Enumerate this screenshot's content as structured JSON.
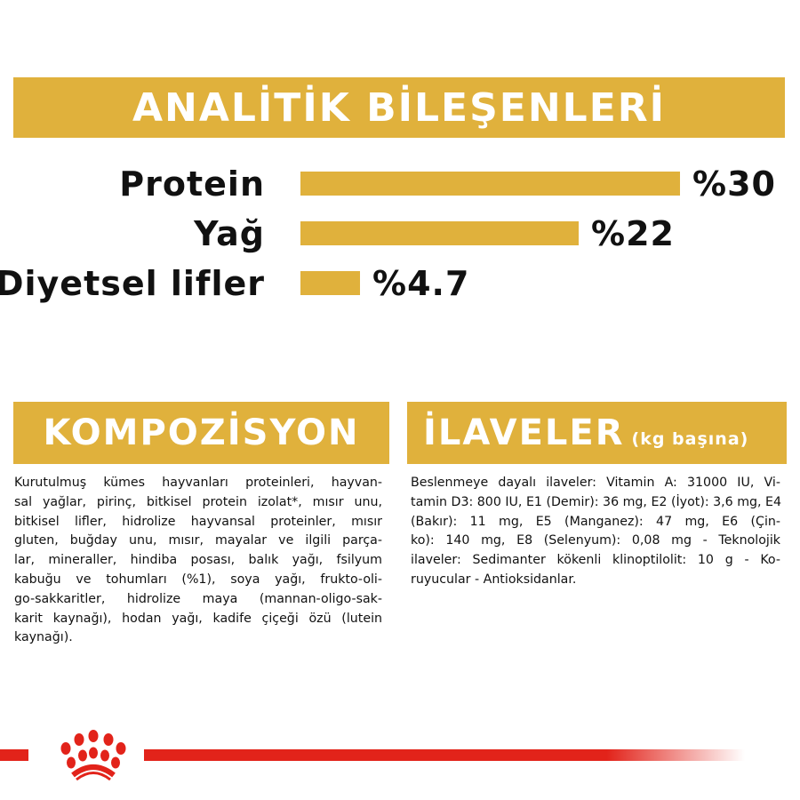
{
  "analytics": {
    "title": "ANALİTİK BİLEŞENLERİ",
    "color": "#e0b13c",
    "items": [
      {
        "label": "Protein",
        "value_text": "%30",
        "value": 30
      },
      {
        "label": "Yağ",
        "value_text": "%22",
        "value": 22
      },
      {
        "label": "Diyetsel lifler",
        "value_text": "%4.7",
        "value": 4.7
      }
    ]
  },
  "composition": {
    "title": "KOMPOZİSYON",
    "lines": [
      "Kurutulmuş kümes hayvanları proteinleri, hayvan-",
      "sal yağlar, pirinç, bitkisel protein izolat*, mısır unu,",
      "bitkisel lifler, hidrolize hayvansal proteinler, mısır",
      "gluten, buğday unu, mısır, mayalar ve ilgili parça-",
      "lar, mineraller, hindiba posası, balık yağı, fsilyum",
      "kabuğu ve tohumları (%1), soya yağı, frukto-oli-",
      "go-sakkaritler, hidrolize maya (mannan-oligo-sak-",
      "karit kaynağı), hodan yağı, kadife çiçeği özü (lutein",
      "kaynağı)."
    ]
  },
  "additives": {
    "title": "İLAVELER",
    "subtitle": "(kg başına)",
    "lines": [
      "Beslenmeye dayalı ilaveler: Vitamin A: 31000 IU, Vi-",
      "tamin D3: 800 IU, E1 (Demir): 36 mg, E2 (İyot): 3,6 mg, E4",
      "(Bakır): 11 mg, E5 (Manganez): 47 mg, E6 (Çin-",
      "ko): 140 mg, E8 (Selenyum): 0,08 mg - Teknolojik",
      "ilaveler: Sedimanter kökenli klinoptilolit: 10 g - Ko-",
      "ruyucular - Antioksidanlar."
    ]
  },
  "footer": {
    "logo": "royal-canin-crown-logo",
    "color": "#e2231a"
  }
}
